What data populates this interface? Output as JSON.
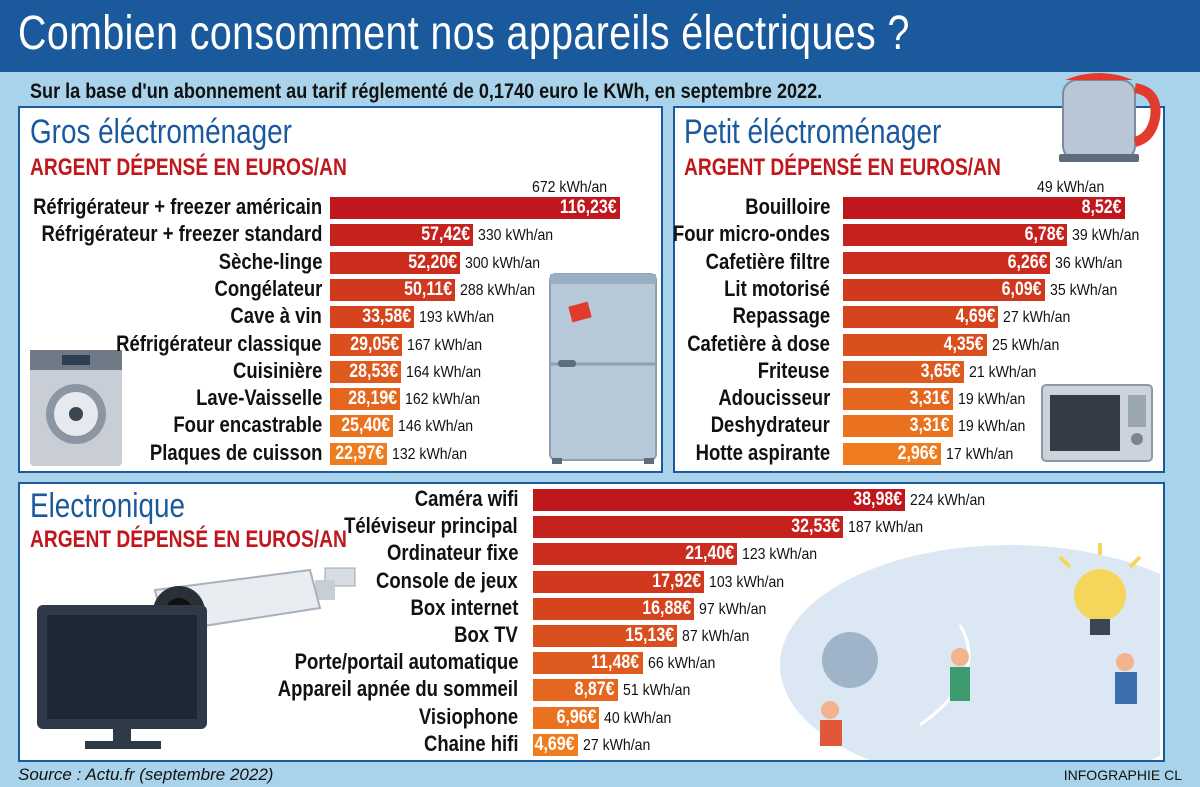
{
  "title": "Combien consomment nos appareils électriques ?",
  "subtitle": "Sur la base d'un abonnement au tarif réglementé de 0,1740 euro le KWh, en septembre 2022.",
  "source": "Source : Actu.fr (septembre 2022)",
  "credit": "INFOGRAPHIE CL",
  "colors": {
    "bar_high": "#c0171d",
    "bar_low": "#ef7c1e",
    "header": "#1a5a9c",
    "background": "#a9d3ea"
  },
  "chart_data": [
    {
      "type": "bar",
      "orientation": "horizontal",
      "title": "Gros éléctroménager",
      "subtitle": "ARGENT DÉPENSÉ EN EUROS/AN",
      "categories": [
        "Réfrigérateur + freezer américain",
        "Réfrigérateur + freezer standard",
        "Sèche-linge",
        "Congélateur",
        "Cave à vin",
        "Réfrigérateur classique",
        "Cuisinière",
        "Lave-Vaisselle",
        "Four encastrable",
        "Plaques de cuisson"
      ],
      "values": [
        116.23,
        57.42,
        52.2,
        50.11,
        33.58,
        29.05,
        28.53,
        28.19,
        25.4,
        22.97
      ],
      "value_labels": [
        "116,23€",
        "57,42€",
        "52,20€",
        "50,11€",
        "33,58€",
        "29,05€",
        "28,53€",
        "28,19€",
        "25,40€",
        "22,97€"
      ],
      "kwh_labels": [
        "672 kWh/an",
        "330 kWh/an",
        "300 kWh/an",
        "288 kWh/an",
        "193 kWh/an",
        "167 kWh/an",
        "164 kWh/an",
        "162 kWh/an",
        "146 kWh/an",
        "132 kWh/an"
      ],
      "kwh": [
        672,
        330,
        300,
        288,
        193,
        167,
        164,
        162,
        146,
        132
      ]
    },
    {
      "type": "bar",
      "orientation": "horizontal",
      "title": "Petit éléctroménager",
      "subtitle": "ARGENT DÉPENSÉ EN EUROS/AN",
      "categories": [
        "Bouilloire",
        "Four micro-ondes",
        "Cafetière filtre",
        "Lit motorisé",
        "Repassage",
        "Cafetière à dose",
        "Friteuse",
        "Adoucisseur",
        "Deshydrateur",
        "Hotte aspirante"
      ],
      "values": [
        8.52,
        6.78,
        6.26,
        6.09,
        4.69,
        4.35,
        3.65,
        3.31,
        3.31,
        2.96
      ],
      "value_labels": [
        "8,52€",
        "6,78€",
        "6,26€",
        "6,09€",
        "4,69€",
        "4,35€",
        "3,65€",
        "3,31€",
        "3,31€",
        "2,96€"
      ],
      "kwh_labels": [
        "49 kWh/an",
        "39 kWh/an",
        "36 kWh/an",
        "35 kWh/an",
        "27 kWh/an",
        "25 kWh/an",
        "21 kWh/an",
        "19 kWh/an",
        "19 kWh/an",
        "17 kWh/an"
      ],
      "kwh": [
        49,
        39,
        36,
        35,
        27,
        25,
        21,
        19,
        19,
        17
      ]
    },
    {
      "type": "bar",
      "orientation": "horizontal",
      "title": "Electronique",
      "subtitle": "ARGENT DÉPENSÉ EN EUROS/AN",
      "categories": [
        "Caméra wifi",
        "Téléviseur principal",
        "Ordinateur fixe",
        "Console de jeux",
        "Box internet",
        "Box TV",
        "Porte/portail automatique",
        "Appareil apnée du sommeil",
        "Visiophone",
        "Chaine hifi"
      ],
      "values": [
        38.98,
        32.53,
        21.4,
        17.92,
        16.88,
        15.13,
        11.48,
        8.87,
        6.96,
        4.69
      ],
      "value_labels": [
        "38,98€",
        "32,53€",
        "21,40€",
        "17,92€",
        "16,88€",
        "15,13€",
        "11,48€",
        "8,87€",
        "6,96€",
        "4,69€"
      ],
      "kwh_labels": [
        "224 kWh/an",
        "187 kWh/an",
        "123 kWh/an",
        "103 kWh/an",
        "97 kWh/an",
        "87 kWh/an",
        "66 kWh/an",
        "51 kWh/an",
        "40 kWh/an",
        "27 kWh/an"
      ],
      "kwh": [
        224,
        187,
        123,
        103,
        97,
        87,
        66,
        51,
        40,
        27
      ]
    }
  ]
}
